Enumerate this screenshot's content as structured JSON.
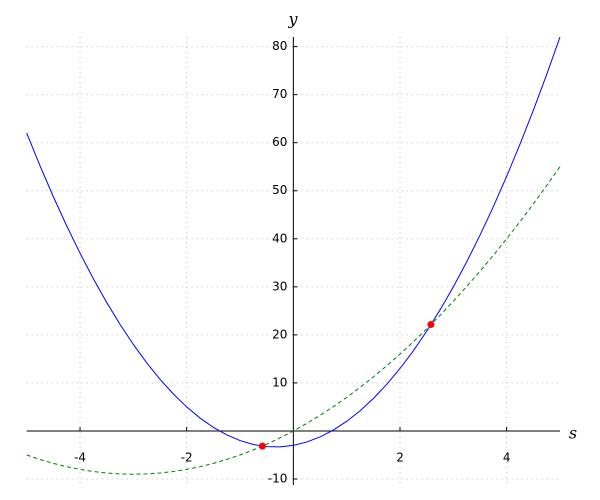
{
  "chart_data": {
    "type": "line",
    "xlabel": "s",
    "ylabel": "y",
    "xlim": [
      -5,
      5
    ],
    "ylim": [
      -10,
      82
    ],
    "xticks": [
      -4,
      -2,
      2,
      4
    ],
    "yticks": [
      -10,
      10,
      20,
      30,
      40,
      50,
      60,
      70,
      80
    ],
    "grid": true,
    "x": [
      -5,
      -4.75,
      -4.5,
      -4.25,
      -4,
      -3.75,
      -3.5,
      -3.25,
      -3,
      -2.75,
      -2.5,
      -2.25,
      -2,
      -1.75,
      -1.5,
      -1.25,
      -1,
      -0.75,
      -0.5,
      -0.25,
      0,
      0.25,
      0.5,
      0.75,
      1,
      1.25,
      1.5,
      1.75,
      2,
      2.25,
      2.5,
      2.75,
      3,
      3.25,
      3.5,
      3.75,
      4,
      4.25,
      4.5,
      4.75,
      5
    ],
    "series": [
      {
        "color": "#0000ff",
        "dashed": false,
        "values": [
          62,
          55.1875,
          48.75,
          42.6875,
          37,
          31.6875,
          26.75,
          22.1875,
          18,
          14.1875,
          10.75,
          7.6875,
          5,
          2.6875,
          0.75,
          -0.8125,
          -2,
          -2.8125,
          -3.25,
          -3.3125,
          -3,
          -2.3125,
          -1.25,
          0.1875,
          2,
          4.1875,
          6.75,
          9.6875,
          13,
          16.6875,
          20.75,
          25.1875,
          30,
          35.1875,
          40.75,
          46.6875,
          53,
          59.6875,
          66.75,
          74.1875,
          82
        ]
      },
      {
        "color": "#008000",
        "dashed": true,
        "values": [
          -5,
          -5.9375,
          -6.75,
          -7.4375,
          -8,
          -8.4375,
          -8.75,
          -8.9375,
          -9,
          -8.9375,
          -8.75,
          -8.4375,
          -8,
          -7.4375,
          -6.75,
          -5.9375,
          -5,
          -3.9375,
          -2.75,
          -1.4375,
          0,
          1.5625,
          3.25,
          5.0625,
          7,
          9.0625,
          11.25,
          13.5625,
          16,
          18.5625,
          21.25,
          24.0625,
          27,
          30.0625,
          33.25,
          36.5625,
          40,
          43.5625,
          47.25,
          51.0625,
          55
        ]
      }
    ],
    "points": {
      "color": "#ff0000",
      "x": [
        -0.58,
        2.58
      ],
      "values": [
        -3.15,
        22.15
      ]
    }
  }
}
